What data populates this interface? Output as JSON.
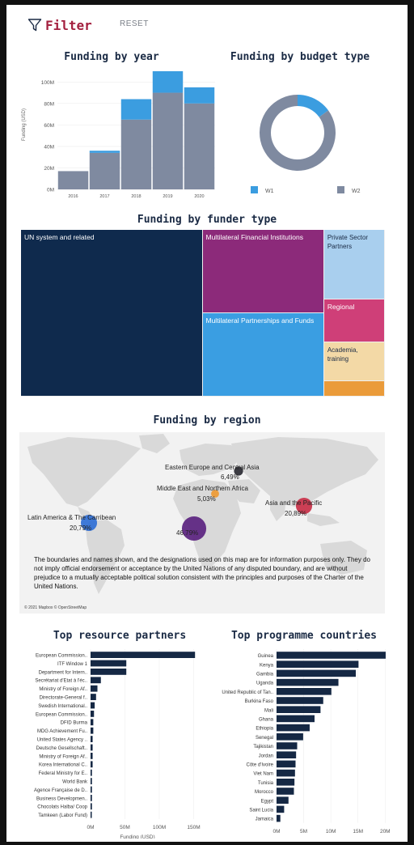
{
  "filter": {
    "label": "Filter",
    "reset": "RESET",
    "icon": "filter-icon"
  },
  "colors": {
    "w1": "#3b9de0",
    "w2": "#7f8aa0",
    "navy": "#152844",
    "un": "#0f2a4d",
    "mfi": "#8c2a7a",
    "private": "#a9cfee",
    "mpf": "#3a9ee2",
    "regional": "#cf3f78",
    "academia": "#f3d9a6",
    "other": "#ea9b3a"
  },
  "headings": {
    "funding_by_year": "Funding by year",
    "funding_by_budget_type": "Funding by budget type",
    "funding_by_funder_type": "Funding by funder type",
    "funding_by_region": "Funding by region",
    "top_resource_partners": "Top resource partners",
    "top_programme_countries": "Top programme countries"
  },
  "region_map": {
    "disclaimer": "The boundaries and names shown, and the designations used on this map are for information purposes only. They do not imply official endorsement or acceptance by the United Nations of any disputed boundary, and are without prejudice to a mutually acceptable political solution consistent with the principles and purposes of the Charter of the United Nations.",
    "credit": "© 2021 Mapbox © OpenStreetMap"
  },
  "chart_data": [
    {
      "id": "funding_by_year",
      "type": "bar",
      "title": "Funding by year",
      "ylabel": "Funding (USD)",
      "categories": [
        "2016",
        "2017",
        "2018",
        "2019",
        "2020"
      ],
      "series": [
        {
          "name": "W2",
          "values": [
            17,
            34,
            65,
            90,
            80
          ]
        },
        {
          "name": "W1",
          "values": [
            0,
            2,
            19,
            20,
            15
          ]
        }
      ],
      "y_ticks": [
        "0M",
        "20M",
        "40M",
        "60M",
        "80M",
        "100M"
      ],
      "ylim": [
        0,
        110
      ],
      "stacked": true
    },
    {
      "id": "funding_by_budget_type",
      "type": "pie",
      "title": "Funding by budget type",
      "donut": true,
      "categories": [
        "W1",
        "W2"
      ],
      "values": [
        15,
        85
      ],
      "legend": "bottom"
    },
    {
      "id": "funding_by_funder_type",
      "type": "treemap",
      "title": "Funding by funder type",
      "categories": [
        "UN system and related",
        "Multilateral Financial Institutions",
        "Multilateral Partnerships and Funds",
        "Private Sector Partners",
        "Regional",
        "Academia, training",
        ""
      ],
      "values": [
        230,
        77,
        77,
        32,
        20,
        18,
        7
      ]
    },
    {
      "id": "funding_by_region",
      "type": "scatter",
      "title": "Funding by region",
      "points": [
        {
          "label": "Eastern Europe and Central Asia",
          "value": "6,49%",
          "share": 6.49,
          "color": "#2b2b33"
        },
        {
          "label": "Middle East and Northern Africa",
          "value": "5,03%",
          "share": 5.03,
          "color": "#ee9a33"
        },
        {
          "label": "Asia and the Pacific",
          "value": "20,89%",
          "share": 20.89,
          "color": "#c93048"
        },
        {
          "label": "Latin America & The Carribean",
          "value": "20,79%",
          "share": 20.79,
          "color": "#2f6fd6"
        },
        {
          "label": "",
          "value": "46,79%",
          "share": 46.79,
          "color": "#5b2380"
        }
      ]
    },
    {
      "id": "top_resource_partners",
      "type": "bar",
      "orientation": "horizontal",
      "title": "Top resource partners",
      "xlabel": "Funding (USD)",
      "x_ticks": [
        "0M",
        "50M",
        "100M",
        "150M"
      ],
      "xlim": [
        0,
        160
      ],
      "categories": [
        "European Commission..",
        "ITF Window 1",
        "Department for Intern..",
        "Secrétariat d'Etat à l'éc..",
        "Ministry of Foreign Af..",
        "Directorate-General f..",
        "Swedish International..",
        "European Commission..",
        "DFID Burma",
        "MDG Achievement Fu..",
        "United States Agency ..",
        "Deutsche Gesellschaft..",
        "Ministry of Foreign Af..",
        "Korea International C..",
        "Federal Ministry for E..",
        "World Bank",
        "Agence Française de D..",
        "Business Developmen..",
        "Chocolats Halba/ Coop",
        "Tamkeen (Labor Fund)"
      ],
      "values": [
        152,
        52,
        52,
        15,
        10,
        8,
        6,
        5,
        4,
        4,
        3,
        3,
        3,
        3,
        2,
        2,
        2,
        2,
        2,
        1
      ]
    },
    {
      "id": "top_programme_countries",
      "type": "bar",
      "orientation": "horizontal",
      "title": "Top programme countries",
      "xlabel": "Funding (USD)",
      "x_ticks": [
        "0M",
        "5M",
        "10M",
        "15M",
        "20M"
      ],
      "xlim": [
        0,
        21
      ],
      "categories": [
        "Guinea",
        "Kenya",
        "Gambia",
        "Uganda",
        "United Republic of Tan..",
        "Burkina Faso",
        "Mali",
        "Ghana",
        "Ethiopia",
        "Senegal",
        "Tajikistan",
        "Jordan",
        "Côte d'Ivoire",
        "Viet Nam",
        "Tunisia",
        "Morocco",
        "Egypt",
        "Saint Lucia",
        "Jamaica"
      ],
      "values": [
        20.1,
        15.1,
        14.6,
        11.4,
        10.1,
        8.6,
        8.1,
        7.0,
        6.1,
        4.9,
        3.8,
        3.6,
        3.5,
        3.4,
        3.3,
        3.2,
        2.2,
        1.4,
        0.7
      ]
    }
  ]
}
